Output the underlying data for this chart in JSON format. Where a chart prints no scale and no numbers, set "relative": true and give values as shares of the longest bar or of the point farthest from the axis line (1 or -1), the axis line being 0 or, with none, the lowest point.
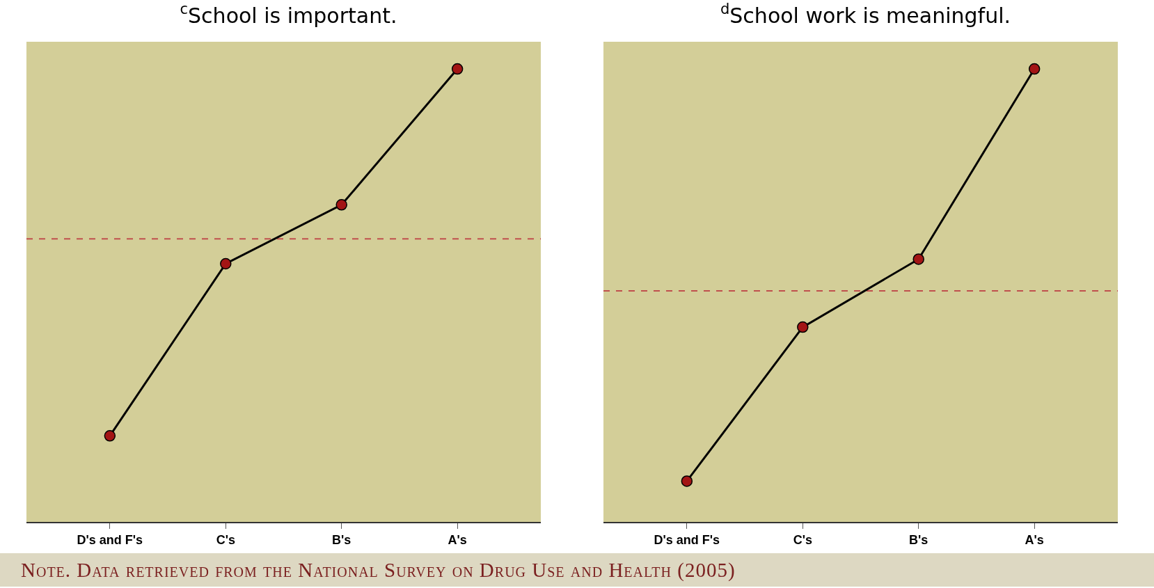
{
  "chart_data": [
    {
      "type": "line",
      "title": "$^{c}$School is important.",
      "categories": [
        "D's and F's",
        "C's",
        "B's",
        "A's"
      ],
      "relative": true,
      "marker": "circle",
      "line_style": "solid",
      "series": [
        {
          "color": "#000000",
          "values": [
            0.19,
            0.57,
            0.7,
            1.0
          ]
        }
      ],
      "ref_lines": [
        {
          "axis": "y",
          "value": 0.625,
          "color": "#c0504d",
          "line_style": "dashed"
        }
      ],
      "annotations": [
        "Note. Data retrieved from the National Survey on Drug Use and Health (2005)"
      ]
    },
    {
      "type": "line",
      "title": "$^{d}$School work is meaningful.",
      "categories": [
        "D's and F's",
        "C's",
        "B's",
        "A's"
      ],
      "relative": true,
      "marker": "circle",
      "line_style": "solid",
      "series": [
        {
          "color": "#000000",
          "values": [
            0.09,
            0.43,
            0.58,
            1.0
          ]
        }
      ],
      "ref_lines": [
        {
          "axis": "y",
          "value": 0.51,
          "color": "#c0504d",
          "line_style": "dashed"
        }
      ]
    }
  ]
}
